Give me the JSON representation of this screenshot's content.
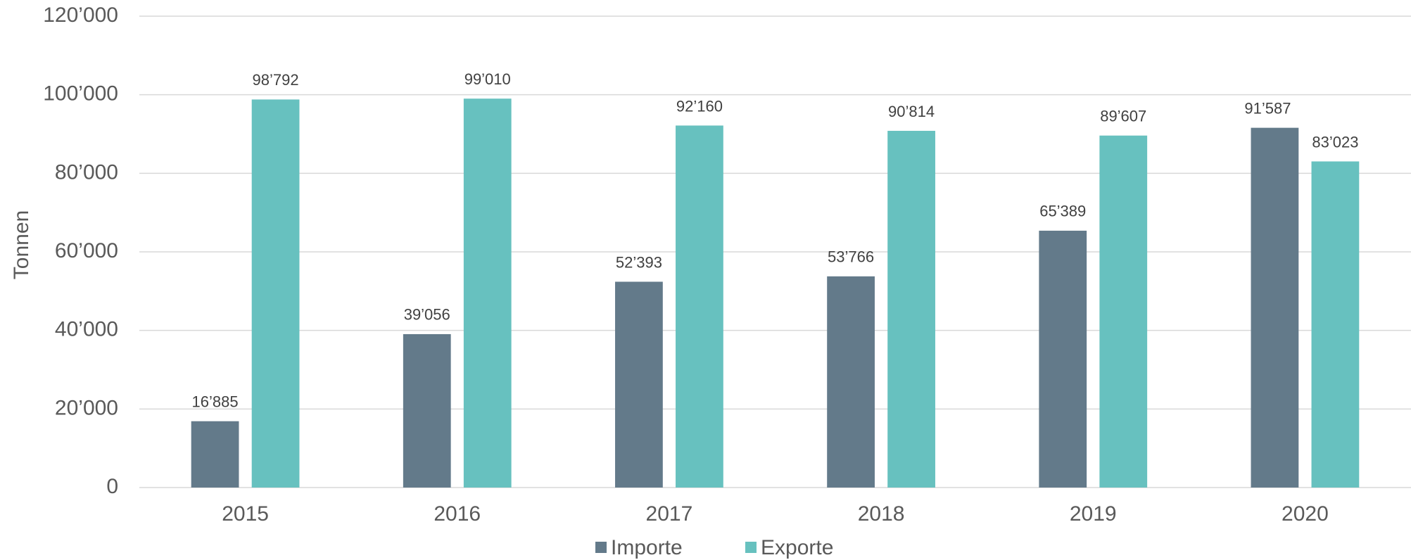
{
  "chart_data": {
    "type": "bar",
    "y_label": "Tonnen",
    "categories": [
      "2015",
      "2016",
      "2017",
      "2018",
      "2019",
      "2020"
    ],
    "series": [
      {
        "name": "Importe",
        "color": "#637a8a",
        "values": [
          16885,
          39056,
          52393,
          53766,
          65389,
          91587
        ],
        "value_labels": [
          "16’885",
          "39’056",
          "52’393",
          "53’766",
          "65’389",
          "91’587"
        ]
      },
      {
        "name": "Exporte",
        "color": "#67c1bf",
        "values": [
          98792,
          99010,
          92160,
          90814,
          89607,
          83023
        ],
        "value_labels": [
          "98’792",
          "99’010",
          "92’160",
          "90’814",
          "89’607",
          "83’023"
        ]
      }
    ],
    "ylim": [
      0,
      120000
    ],
    "yticks": [
      0,
      {
        "value": 20000,
        "label": "20’000"
      },
      {
        "value": 40000,
        "label": "40’000"
      },
      {
        "value": 60000,
        "label": "60’000"
      },
      {
        "value": 80000,
        "label": "80’000"
      },
      {
        "value": 100000,
        "label": "100’000"
      },
      {
        "value": 120000,
        "label": "120’000"
      }
    ],
    "grid": true,
    "legend": "bottom"
  }
}
